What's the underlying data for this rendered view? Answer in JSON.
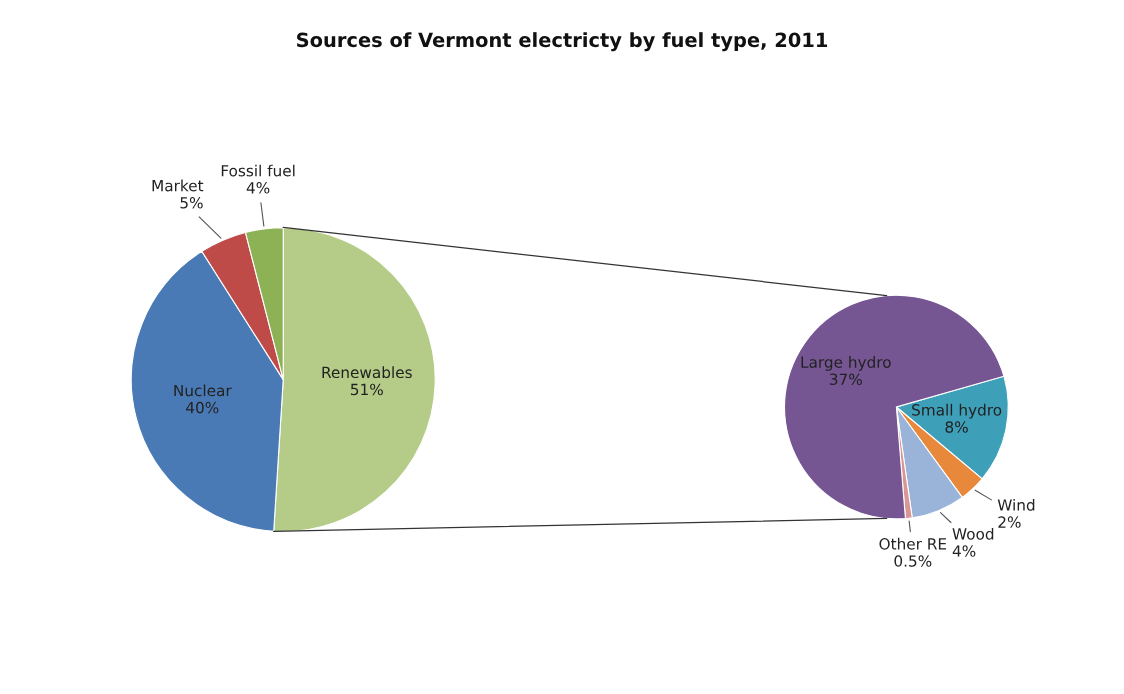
{
  "chart_data": [
    {
      "type": "pie",
      "title": "Sources of Vermont electricty by fuel type, 2011",
      "categories": [
        "Renewables",
        "Nuclear",
        "Market",
        "Fossil fuel"
      ],
      "values": [
        51,
        40,
        5,
        4
      ],
      "value_labels": [
        "51%",
        "40%",
        "5%",
        "4%"
      ],
      "colors": [
        "#b4cc87",
        "#4a7ab5",
        "#be4b48",
        "#8db255"
      ]
    },
    {
      "type": "pie",
      "categories": [
        "Small hydro",
        "Wind",
        "Wood",
        "Other RE",
        "Large hydro"
      ],
      "values": [
        8,
        2,
        4,
        0.5,
        37
      ],
      "value_labels": [
        "8%",
        "2%",
        "4%",
        "0.5%",
        "37%"
      ],
      "colors": [
        "#3d9fb8",
        "#e8883a",
        "#9ab3d8",
        "#d99694",
        "#755592"
      ]
    }
  ]
}
